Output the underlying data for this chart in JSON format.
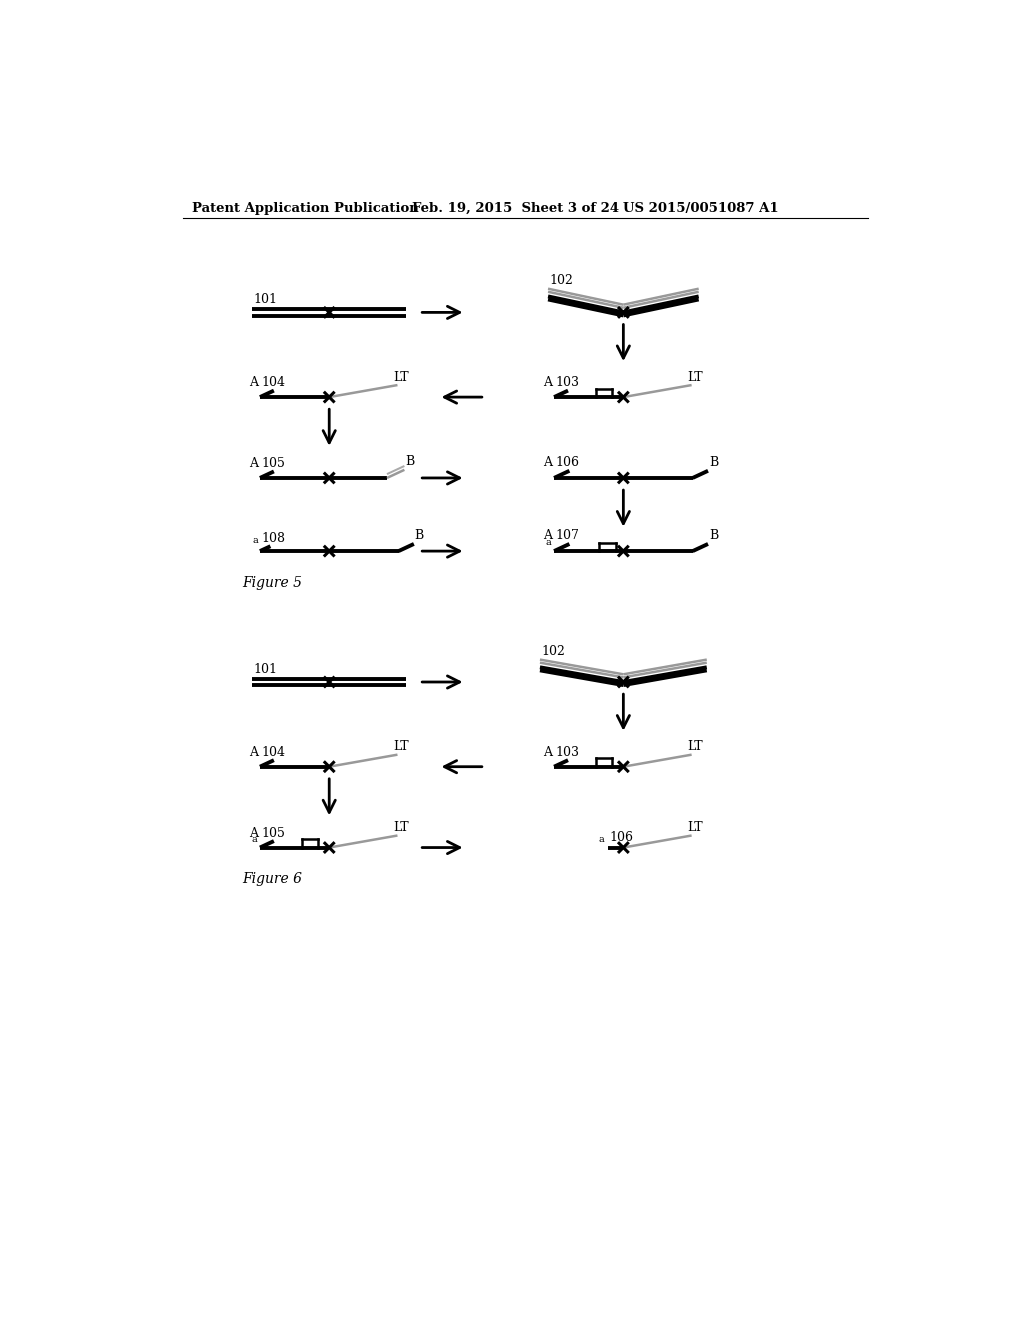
{
  "bg_color": "#ffffff",
  "header_left": "Patent Application Publication",
  "header_mid": "Feb. 19, 2015  Sheet 3 of 24",
  "header_right": "US 2015/0051087 A1",
  "fig5_label": "Figure 5",
  "fig6_label": "Figure 6"
}
